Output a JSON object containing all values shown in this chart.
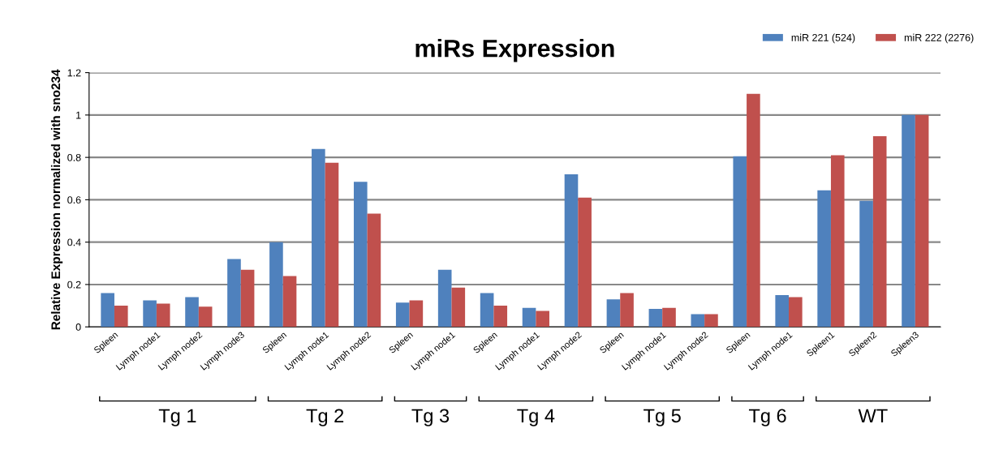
{
  "chart_data": {
    "type": "bar",
    "title": "miRs Expression",
    "ylabel": "Relative Expression normalized with sno234",
    "categories": [
      "Spleen",
      "Lymph node1",
      "Lymph node2",
      "Lymph node3",
      "Spleen",
      "Lymph node1",
      "Lymph node2",
      "Spleen",
      "Lymph node1",
      "Spleen",
      "Lymph node1",
      "Lymph node2",
      "Spleen",
      "Lymph node1",
      "Lymph node2",
      "Spleen",
      "Lymph node1",
      "Spleen1",
      "Spleen2",
      "Spleen3"
    ],
    "series": [
      {
        "name": "miR 221 (524)",
        "color": "#4f81bd",
        "values": [
          0.16,
          0.125,
          0.14,
          0.32,
          0.4,
          0.84,
          0.685,
          0.115,
          0.27,
          0.16,
          0.09,
          0.72,
          0.13,
          0.085,
          0.06,
          0.805,
          0.15,
          0.645,
          0.595,
          1.0
        ]
      },
      {
        "name": "miR 222 (2276)",
        "color": "#c0504d",
        "values": [
          0.1,
          0.11,
          0.095,
          0.27,
          0.24,
          0.775,
          0.535,
          0.125,
          0.185,
          0.1,
          0.075,
          0.61,
          0.16,
          0.09,
          0.06,
          1.1,
          0.14,
          0.81,
          0.9,
          1.0
        ]
      }
    ],
    "ylim": [
      0,
      1.2
    ],
    "yticks": [
      0,
      0.2,
      0.4,
      0.6,
      0.8,
      1,
      1.2
    ],
    "grid": "y",
    "legend": "top right",
    "annotations": [
      "Tg 1",
      "Tg 2",
      "Tg 3",
      "Tg 4",
      "Tg 5",
      "Tg 6",
      "WT"
    ]
  }
}
